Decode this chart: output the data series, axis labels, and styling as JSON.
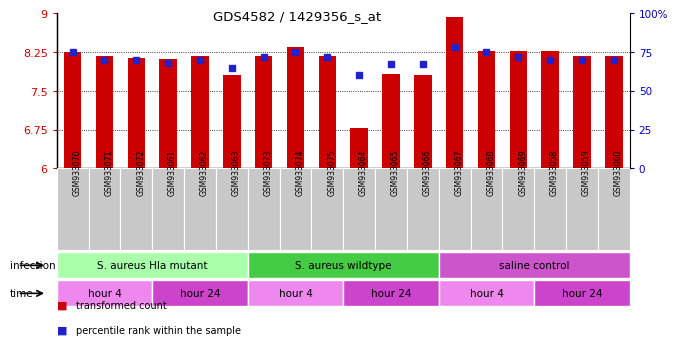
{
  "title": "GDS4582 / 1429356_s_at",
  "samples": [
    "GSM933070",
    "GSM933071",
    "GSM933072",
    "GSM933061",
    "GSM933062",
    "GSM933063",
    "GSM933073",
    "GSM933074",
    "GSM933075",
    "GSM933064",
    "GSM933065",
    "GSM933066",
    "GSM933067",
    "GSM933068",
    "GSM933069",
    "GSM933058",
    "GSM933059",
    "GSM933060"
  ],
  "transformed_counts": [
    8.25,
    8.18,
    8.13,
    8.12,
    8.18,
    7.8,
    8.18,
    8.35,
    8.18,
    6.78,
    7.83,
    7.8,
    8.92,
    8.28,
    8.28,
    8.28,
    8.18,
    8.18
  ],
  "percentile_ranks": [
    75,
    70,
    70,
    68,
    70,
    65,
    72,
    75,
    72,
    60,
    67,
    67,
    78,
    75,
    72,
    70,
    70,
    70
  ],
  "y_min": 6.0,
  "y_max": 9.0,
  "y_ticks": [
    6.0,
    6.75,
    7.5,
    8.25,
    9.0
  ],
  "y_tick_labels": [
    "6",
    "6.75",
    "7.5",
    "8.25",
    "9"
  ],
  "right_y_ticks": [
    0,
    25,
    50,
    75,
    100
  ],
  "right_y_labels": [
    "0",
    "25",
    "50",
    "75",
    "100%"
  ],
  "bar_color": "#cc0000",
  "dot_color": "#2222cc",
  "bar_width": 0.55,
  "infection_groups": [
    {
      "label": "S. aureus Hla mutant",
      "start": 0,
      "end": 6,
      "color": "#aaffaa"
    },
    {
      "label": "S. aureus wildtype",
      "start": 6,
      "end": 12,
      "color": "#44cc44"
    },
    {
      "label": "saline control",
      "start": 12,
      "end": 18,
      "color": "#cc55cc"
    }
  ],
  "time_groups": [
    {
      "label": "hour 4",
      "start": 0,
      "end": 3,
      "color": "#ee88ee"
    },
    {
      "label": "hour 24",
      "start": 3,
      "end": 6,
      "color": "#cc44cc"
    },
    {
      "label": "hour 4",
      "start": 6,
      "end": 9,
      "color": "#ee88ee"
    },
    {
      "label": "hour 24",
      "start": 9,
      "end": 12,
      "color": "#cc44cc"
    },
    {
      "label": "hour 4",
      "start": 12,
      "end": 15,
      "color": "#ee88ee"
    },
    {
      "label": "hour 24",
      "start": 15,
      "end": 18,
      "color": "#cc44cc"
    }
  ],
  "bg_color": "#ffffff",
  "plot_bg_color": "#ffffff",
  "sample_bg_color": "#c8c8c8",
  "infection_label": "infection",
  "time_label": "time"
}
